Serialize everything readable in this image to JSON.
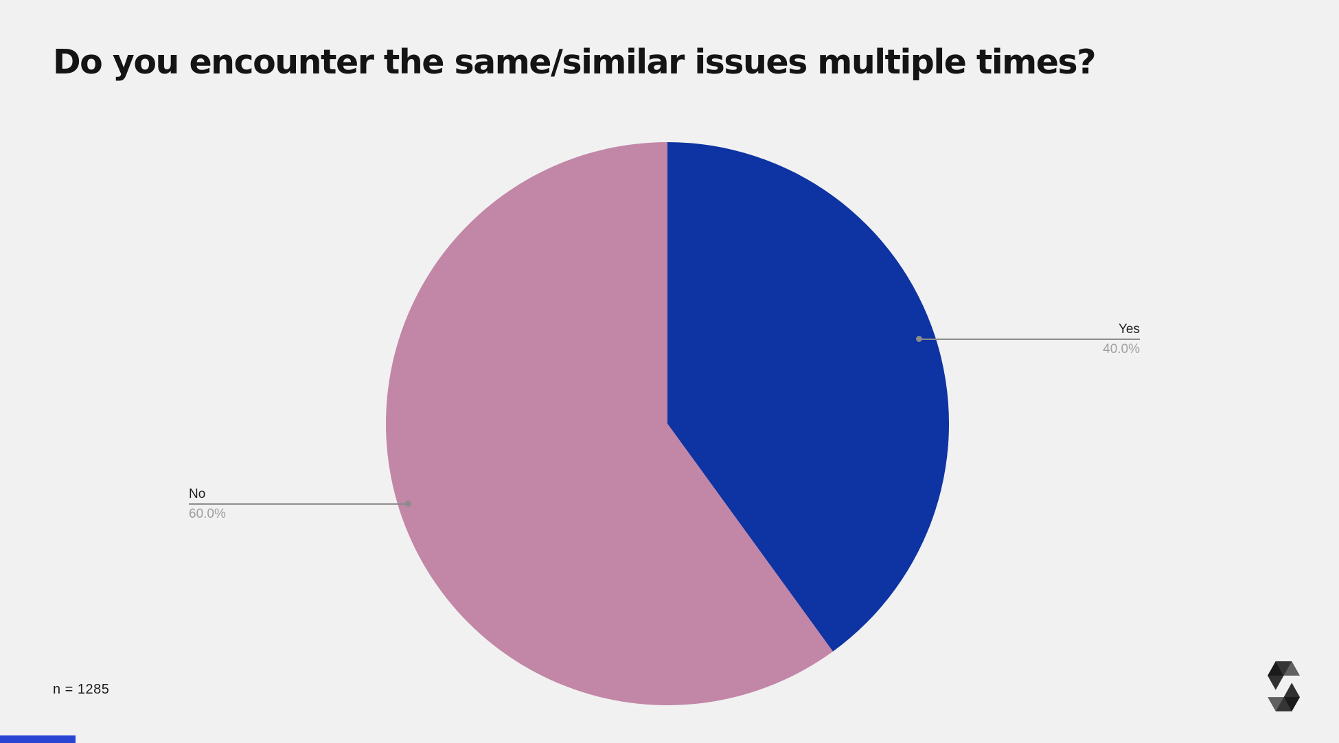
{
  "page": {
    "title": "Do you encounter the same/similar issues multiple times?",
    "sample_size_label": "n = 1285",
    "logo_name": "solidity-logo",
    "colors": {
      "background": "#f1f1f1",
      "title": "#141414",
      "category_label": "#1d1d1d",
      "value_label": "#9e9e9e",
      "leader_line": "#8c8c8c",
      "progress_bar": "#2944d2",
      "logo": "#000000"
    }
  },
  "chart_data": {
    "type": "pie",
    "title": "Do you encounter the same/similar issues multiple times?",
    "sample_size": "n = 1285",
    "categories": [
      "Yes",
      "No"
    ],
    "values": [
      40.0,
      60.0
    ],
    "value_labels": [
      "40.0%",
      "60.0%"
    ],
    "colors": [
      "#0e33a2",
      "#c286a7"
    ],
    "start_angle": "top",
    "direction": "clockwise",
    "legend": "none",
    "callout_style": "leader-line-with-dot"
  }
}
